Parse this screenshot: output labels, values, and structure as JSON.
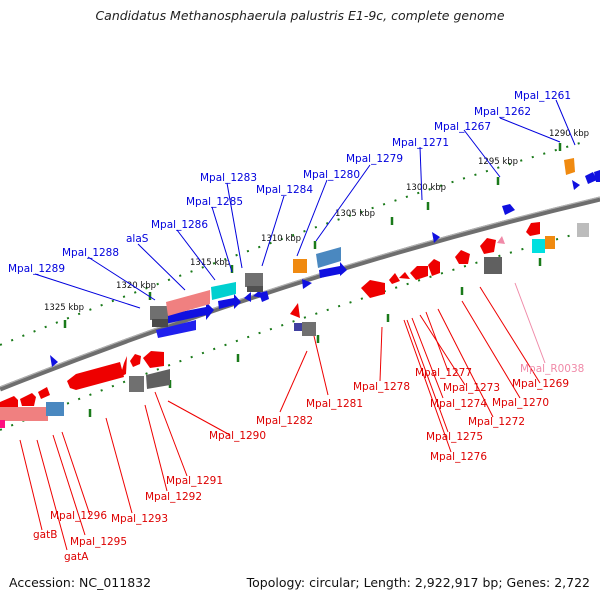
{
  "title": "Candidatus Methanosphaerula palustris E1-9c, complete genome",
  "accession": "Accession: NC_011832",
  "topology": "Topology: circular; Length: 2,922,917 bp; Genes: 2,722",
  "colors": {
    "forward_cds": "#0000ee",
    "reverse_cds": "#ee0000",
    "rna": "#f08aa8",
    "backbone": "#777777",
    "tick": "#1a7a1a",
    "grey_feature": "#707070",
    "cyan_feature": "#00d0d0",
    "orange_feature": "#f08a10",
    "steelblue_feature": "#4a88c0",
    "salmon_feature": "#f08080"
  },
  "kbp_markers": [
    "1290 kbp",
    "1295 kbp",
    "1300 kbp",
    "1305 kbp",
    "1310 kbp",
    "1315 kbp",
    "1320 kbp",
    "1325 kbp"
  ],
  "forward_labels": [
    "Mpal_1261",
    "Mpal_1262",
    "Mpal_1267",
    "Mpal_1271",
    "Mpal_1279",
    "Mpal_1280",
    "Mpal_1283",
    "Mpal_1284",
    "Mpal_1285",
    "Mpal_1286",
    "alaS",
    "Mpal_1288",
    "Mpal_1289"
  ],
  "reverse_labels": [
    "Mpal_1269",
    "Mpal_R0038",
    "Mpal_1270",
    "Mpal_1272",
    "Mpal_1273",
    "Mpal_1274",
    "Mpal_1275",
    "Mpal_1276",
    "Mpal_1277",
    "Mpal_1278",
    "Mpal_1281",
    "Mpal_1282",
    "Mpal_1290",
    "Mpal_1291",
    "Mpal_1292",
    "Mpal_1293",
    "Mpal_1296",
    "Mpal_1295",
    "gatB",
    "gatA"
  ]
}
